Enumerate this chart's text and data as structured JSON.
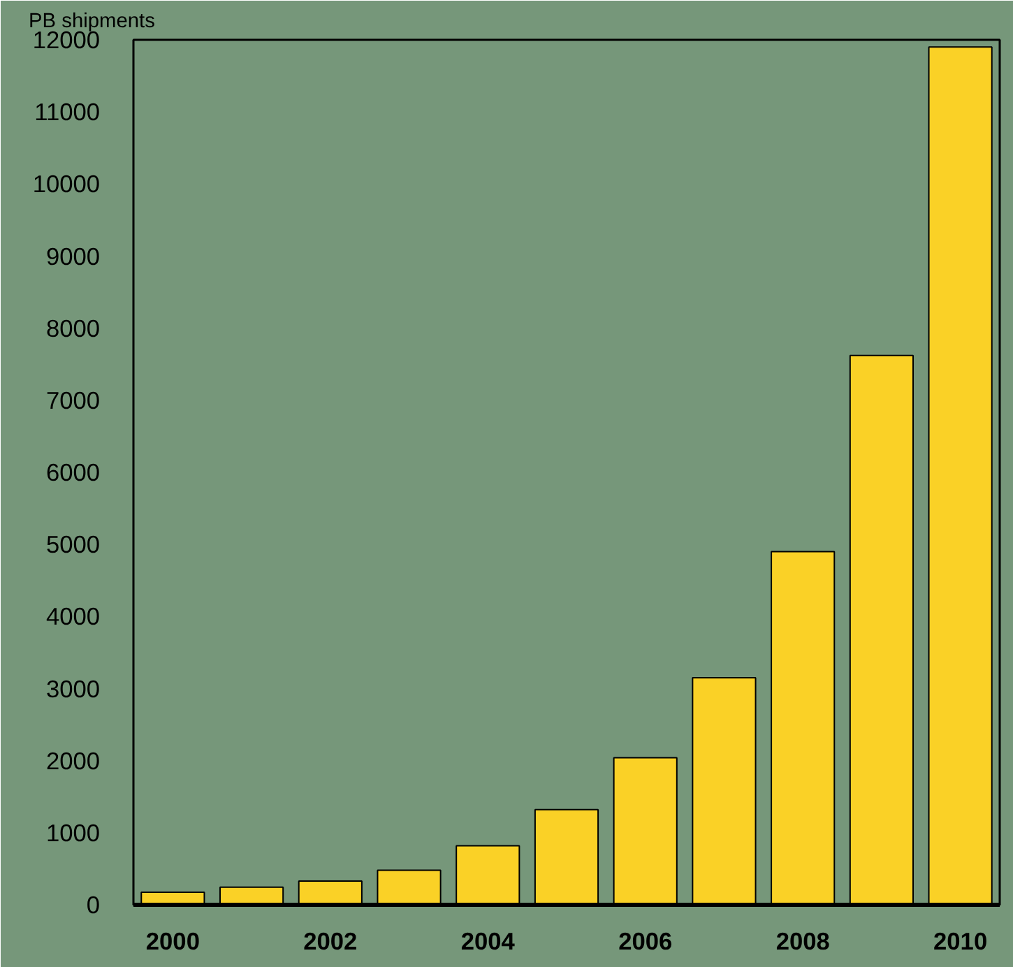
{
  "chart_data": {
    "type": "bar",
    "ylabel": "PB shipments",
    "x": [
      2000,
      2001,
      2002,
      2003,
      2004,
      2005,
      2006,
      2007,
      2008,
      2009,
      2010
    ],
    "values": [
      175,
      245,
      330,
      480,
      820,
      1320,
      2040,
      3150,
      4900,
      7620,
      11900
    ],
    "color": "#fad126",
    "xlim": [
      1999.5,
      2010.5
    ],
    "xticks": [
      2000,
      2002,
      2004,
      2006,
      2008,
      2010
    ],
    "ylim": [
      0,
      12000
    ],
    "yticks": [
      0,
      1000,
      2000,
      3000,
      4000,
      5000,
      6000,
      7000,
      8000,
      9000,
      10000,
      11000,
      12000
    ],
    "grid": false
  }
}
